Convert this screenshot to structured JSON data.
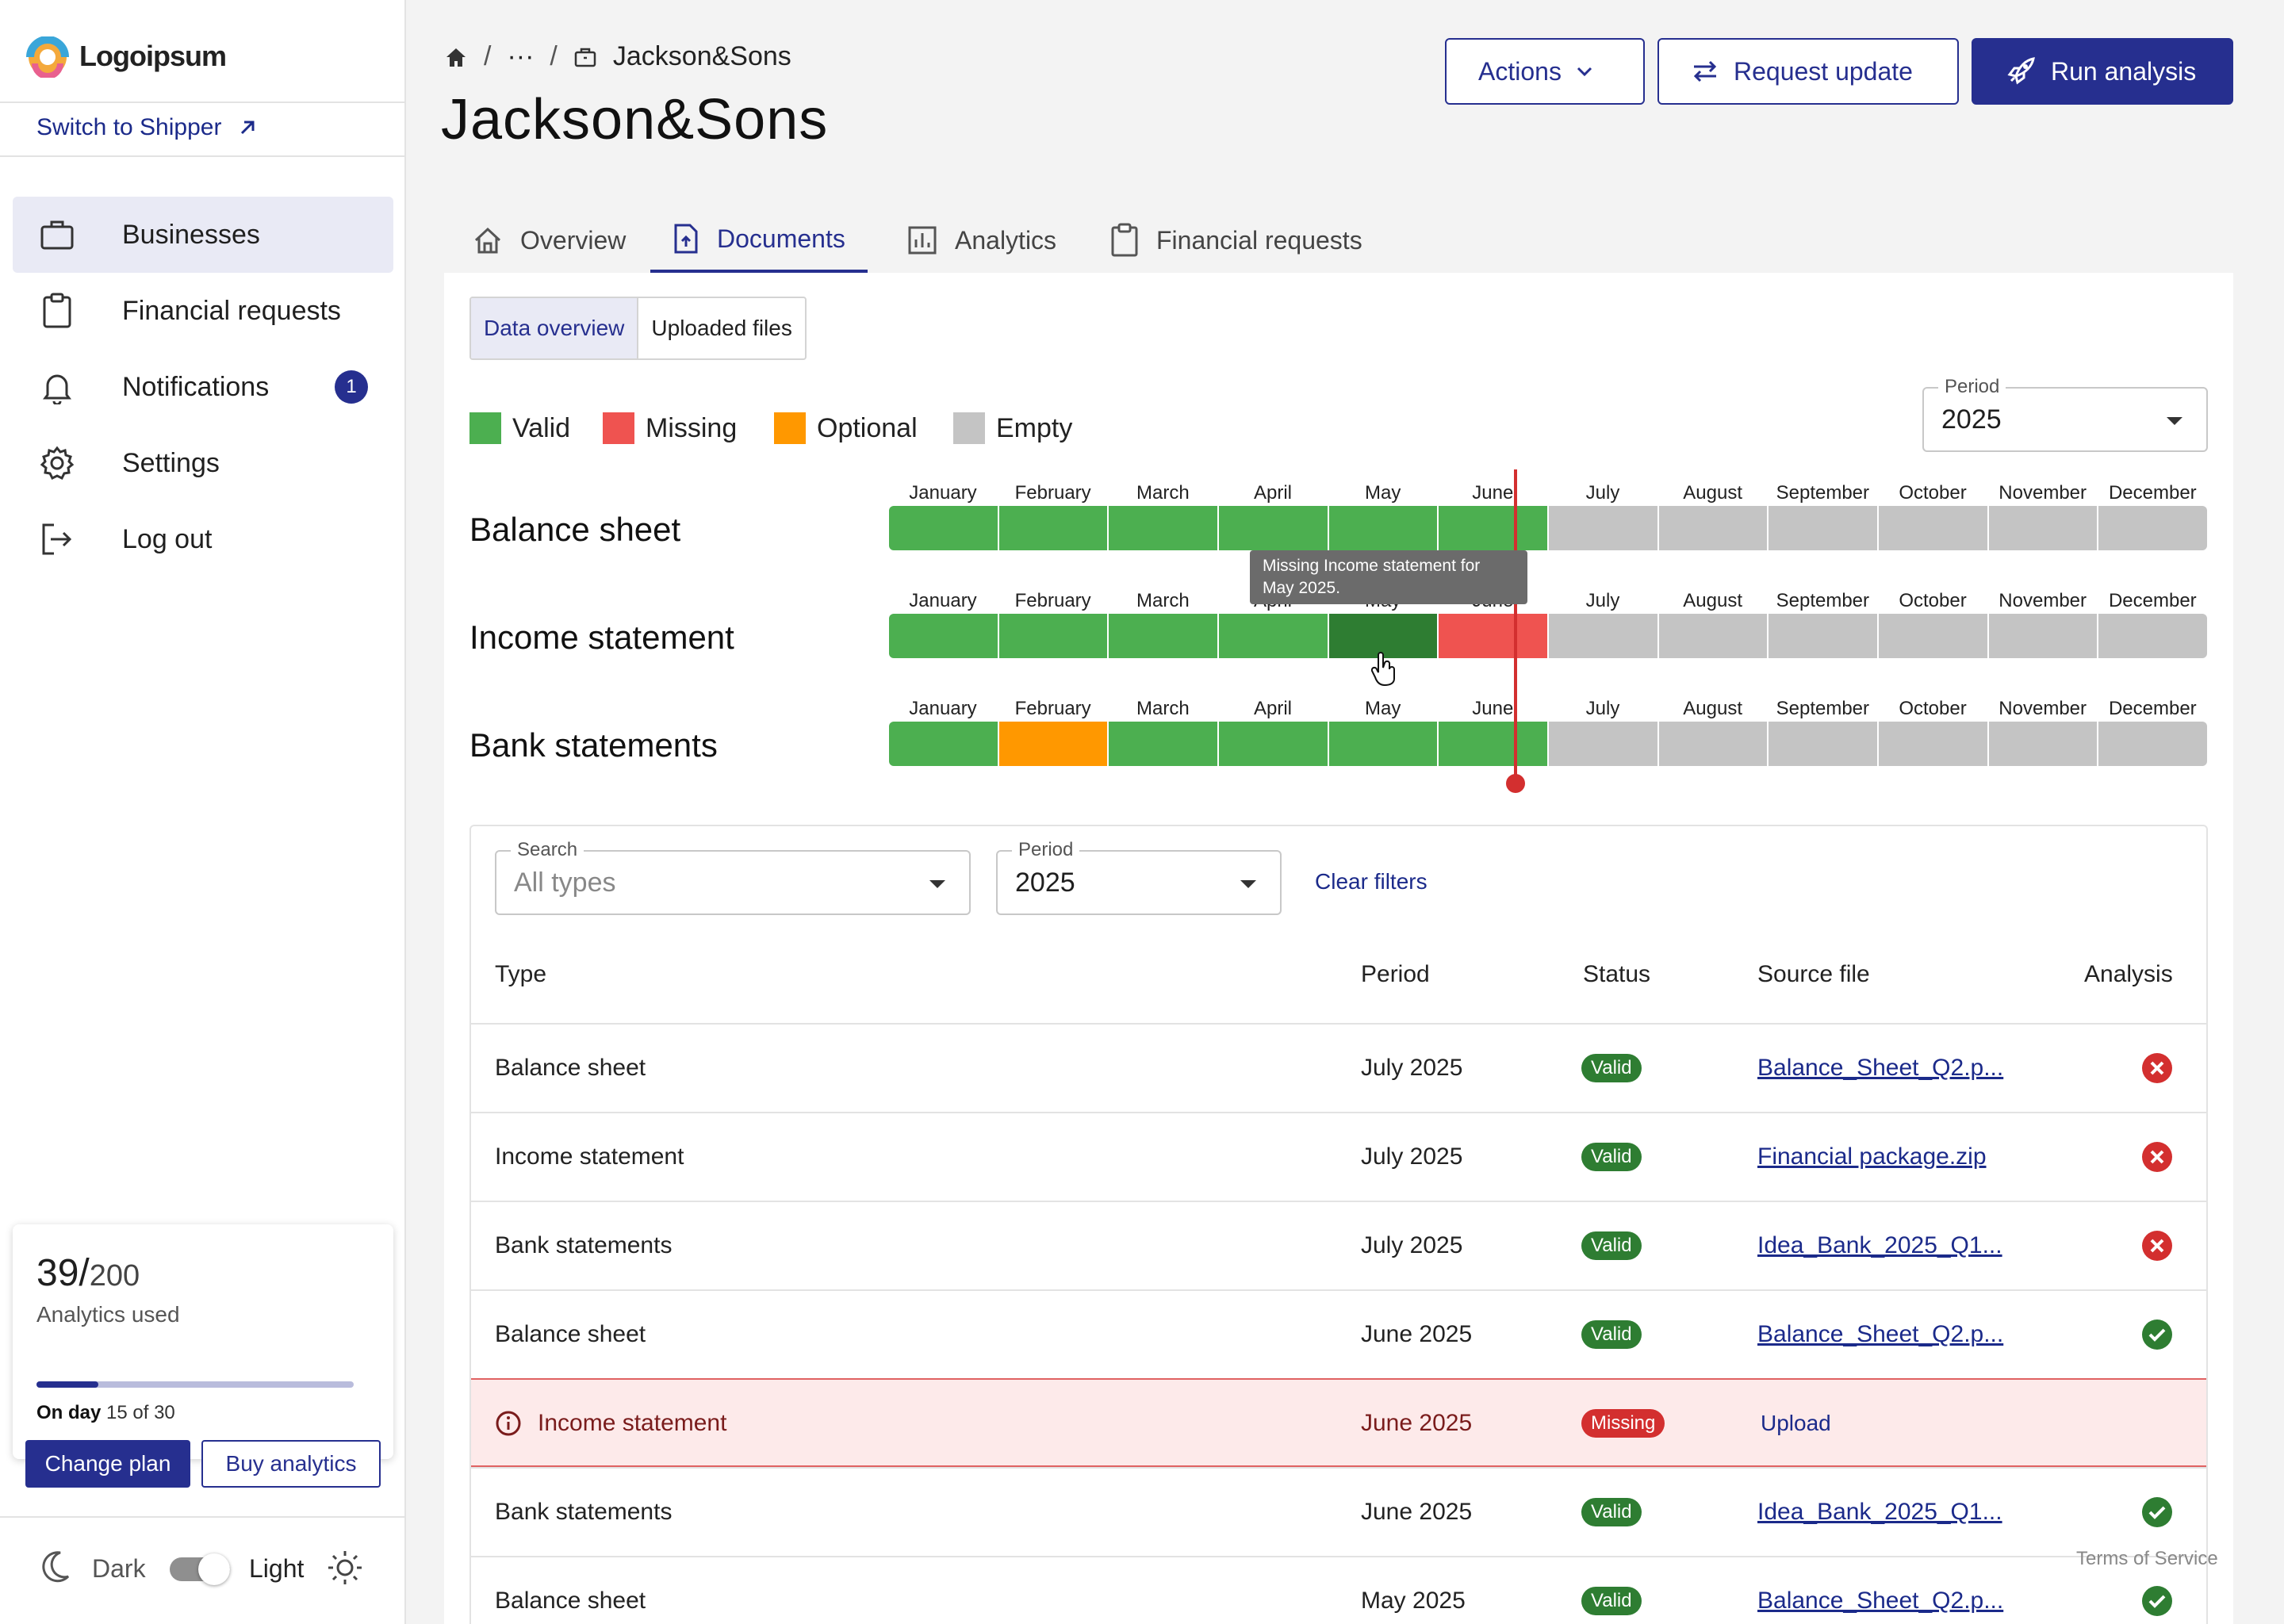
{
  "brand": {
    "name": "Logoipsum",
    "accent": "#262f8f"
  },
  "sidebar": {
    "switch_label": "Switch to Shipper",
    "items": [
      {
        "label": "Businesses",
        "icon": "briefcase-icon"
      },
      {
        "label": "Financial requests",
        "icon": "clipboard-icon"
      },
      {
        "label": "Notifications",
        "icon": "bell-icon",
        "badge": "1"
      },
      {
        "label": "Settings",
        "icon": "gear-icon"
      },
      {
        "label": "Log out",
        "icon": "logout-icon"
      }
    ],
    "usage": {
      "used": "39/",
      "total": "200",
      "label": "Analytics used",
      "fraction": 0.195,
      "day_prefix": "On day",
      "day_value": "15 of 30",
      "change_plan": "Change plan",
      "buy_analytics": "Buy analytics"
    },
    "theme": {
      "dark": "Dark",
      "light": "Light"
    }
  },
  "header": {
    "breadcrumb": {
      "ellipsis": "···",
      "current": "Jackson&Sons"
    },
    "title": "Jackson&Sons",
    "actions_label": "Actions",
    "request_label": "Request update",
    "run_label": "Run analysis"
  },
  "tabs": [
    {
      "label": "Overview",
      "icon": "home-icon"
    },
    {
      "label": "Documents",
      "icon": "document-upload-icon"
    },
    {
      "label": "Analytics",
      "icon": "bar-chart-icon"
    },
    {
      "label": "Financial requests",
      "icon": "clipboard-icon"
    }
  ],
  "segmented": {
    "data_overview": "Data overview",
    "uploaded_files": "Uploaded files"
  },
  "legend": [
    {
      "label": "Valid",
      "color": "#4caf50"
    },
    {
      "label": "Missing",
      "color": "#ef5350"
    },
    {
      "label": "Optional",
      "color": "#ff9800"
    },
    {
      "label": "Empty",
      "color": "#c4c4c4"
    }
  ],
  "period_select": {
    "label": "Period",
    "value": "2025"
  },
  "months": [
    "January",
    "February",
    "March",
    "April",
    "May",
    "June",
    "July",
    "August",
    "September",
    "October",
    "November",
    "December"
  ],
  "timeline_rows": [
    {
      "label": "Balance sheet",
      "statuses": [
        "valid",
        "valid",
        "valid",
        "valid",
        "valid",
        "valid",
        "empty",
        "empty",
        "empty",
        "empty",
        "empty",
        "empty"
      ]
    },
    {
      "label": "Income statement",
      "statuses": [
        "valid",
        "valid",
        "valid",
        "valid",
        "hover",
        "missing",
        "empty",
        "empty",
        "empty",
        "empty",
        "empty",
        "empty"
      ]
    },
    {
      "label": "Bank statements",
      "statuses": [
        "valid",
        "optional",
        "valid",
        "valid",
        "valid",
        "valid",
        "empty",
        "empty",
        "empty",
        "empty",
        "empty",
        "empty"
      ]
    }
  ],
  "tooltip": {
    "line1": "Missing Income statement for",
    "line2": "May 2025."
  },
  "filters": {
    "search_label": "Search",
    "search_placeholder": "All types",
    "period_label": "Period",
    "period_value": "2025",
    "clear": "Clear filters"
  },
  "table": {
    "headers": {
      "type": "Type",
      "period": "Period",
      "status": "Status",
      "source": "Source file",
      "analysis": "Analysis"
    },
    "rows": [
      {
        "type": "Balance sheet",
        "period": "July 2025",
        "status": "Valid",
        "file": "Balance_Sheet_Q2.p...",
        "analysis": "error"
      },
      {
        "type": "Income statement",
        "period": "July 2025",
        "status": "Valid",
        "file": "Financial package.zip",
        "analysis": "error"
      },
      {
        "type": "Bank statements",
        "period": "July 2025",
        "status": "Valid",
        "file": "Idea_Bank_2025_Q1...",
        "analysis": "error"
      },
      {
        "type": "Balance sheet",
        "period": "June 2025",
        "status": "Valid",
        "file": "Balance_Sheet_Q2.p...",
        "analysis": "ok"
      },
      {
        "type": "Income statement",
        "period": "June 2025",
        "status": "Missing",
        "file": "Upload",
        "analysis": "none"
      },
      {
        "type": "Bank statements",
        "period": "June 2025",
        "status": "Valid",
        "file": "Idea_Bank_2025_Q1...",
        "analysis": "ok"
      },
      {
        "type": "Balance sheet",
        "period": "May 2025",
        "status": "Valid",
        "file": "Balance_Sheet_Q2.p...",
        "analysis": "ok"
      }
    ]
  },
  "footer": {
    "terms": "Terms of Service"
  }
}
